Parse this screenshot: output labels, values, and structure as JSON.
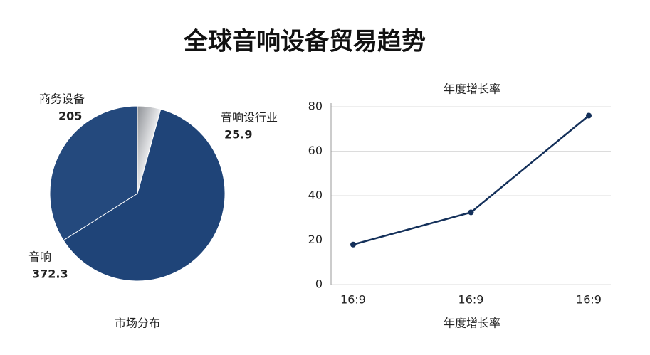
{
  "title": "全球音响设备贸易趋势",
  "chart_data": [
    {
      "type": "pie",
      "xlabel": "市场分布",
      "categories": [
        "音响设行业",
        "音响",
        "商务设备"
      ],
      "values": [
        25.9,
        372.3,
        205
      ],
      "colors": [
        "#b4b7bc",
        "#1f4478",
        "#24497d"
      ]
    },
    {
      "type": "line",
      "title": "年度增长率",
      "xlabel": "年度增长率",
      "categories": [
        "16:9",
        "16:9",
        "16:9"
      ],
      "series": [
        {
          "name": "年度增长率",
          "color": "#14305a",
          "values": [
            18,
            32.5,
            76
          ]
        }
      ],
      "ylim": [
        0,
        80
      ],
      "yticks": [
        0,
        20,
        40,
        60,
        80
      ],
      "grid": true
    }
  ]
}
